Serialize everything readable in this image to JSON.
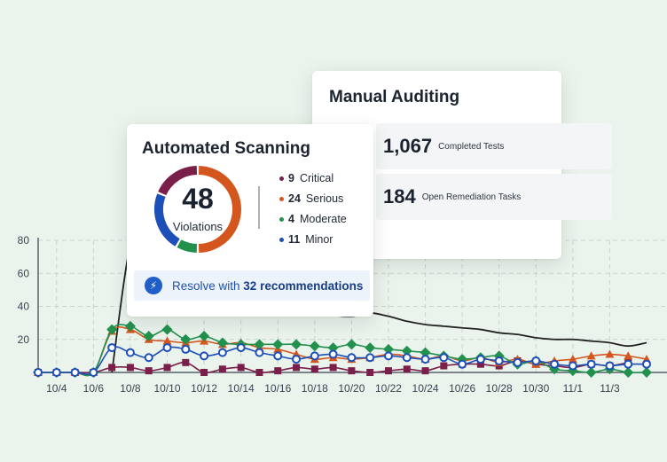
{
  "colors": {
    "critical": "#7a1e4a",
    "serious": "#d4561f",
    "moderate": "#23914e",
    "minor": "#1d4fb8",
    "black_line": "#222222",
    "brand_blue": "#1f5ec8"
  },
  "manual_auditing": {
    "title": "Manual Auditing",
    "stats": [
      {
        "value": "1,067",
        "label": "Completed Tests"
      },
      {
        "value": "184",
        "label": "Open Remediation Tasks"
      }
    ]
  },
  "automated_scanning": {
    "title": "Automated Scanning",
    "total": "48",
    "total_label": "Violations",
    "legend": [
      {
        "count": "9",
        "label": "Critical",
        "key": "critical"
      },
      {
        "count": "24",
        "label": "Serious",
        "key": "serious"
      },
      {
        "count": "4",
        "label": "Moderate",
        "key": "moderate"
      },
      {
        "count": "11",
        "label": "Minor",
        "key": "minor"
      }
    ],
    "resolve": {
      "prefix": "Resolve with",
      "count_text": "32 recommendations",
      "icon": "lightning-bolt-icon"
    }
  },
  "chart_data": {
    "type": "line",
    "ylim": [
      0,
      80
    ],
    "yticks": [
      20,
      40,
      60,
      80
    ],
    "xlim": [
      3,
      36
    ],
    "x_tick_labels": [
      "10/4",
      "10/6",
      "10/8",
      "10/10",
      "10/12",
      "10/14",
      "10/16",
      "10/18",
      "10/20",
      "10/22",
      "10/24",
      "10/26",
      "10/28",
      "10/30",
      "11/1",
      "11/3"
    ],
    "grid": true,
    "series": [
      {
        "key": "total",
        "color": "#222222",
        "marker": "none",
        "x": [
          7,
          7.9,
          8.5,
          9,
          10,
          11,
          12,
          13,
          14,
          15,
          16,
          17,
          18,
          19,
          20,
          21,
          22,
          23,
          24,
          25,
          26,
          27,
          28,
          29,
          30,
          31,
          32,
          33,
          34,
          35,
          36
        ],
        "y": [
          0,
          72,
          82,
          88,
          86,
          82,
          79,
          76,
          72,
          64,
          58,
          48,
          40,
          35,
          34,
          36,
          34,
          31,
          29,
          28,
          27,
          26,
          24,
          23,
          21,
          20,
          20,
          19,
          18,
          16,
          18
        ]
      },
      {
        "key": "critical",
        "color": "#7a1e4a",
        "marker": "square",
        "x": [
          3,
          4,
          5,
          6,
          7,
          8,
          9,
          10,
          11,
          12,
          13,
          14,
          15,
          16,
          17,
          18,
          19,
          20,
          21,
          22,
          23,
          24,
          25,
          26,
          27,
          28,
          29,
          30,
          31,
          32,
          33,
          34,
          35
        ],
        "y": [
          0,
          0,
          0,
          0,
          3,
          3,
          1,
          3,
          6,
          0,
          2,
          3,
          0,
          1,
          3,
          2,
          3,
          1,
          0,
          1,
          2,
          1,
          4,
          5,
          5,
          4,
          7,
          5,
          4,
          3,
          5,
          4,
          6
        ]
      },
      {
        "key": "serious",
        "color": "#d4561f",
        "marker": "triangle",
        "x": [
          3,
          4,
          5,
          6,
          7,
          8,
          9,
          10,
          11,
          12,
          13,
          14,
          15,
          16,
          17,
          18,
          19,
          20,
          21,
          22,
          23,
          24,
          25,
          26,
          27,
          28,
          29,
          30,
          31,
          32,
          33,
          34,
          35,
          36
        ],
        "y": [
          0,
          0,
          0,
          0,
          25,
          26,
          20,
          19,
          18,
          19,
          17,
          18,
          15,
          14,
          11,
          8,
          9,
          8,
          9,
          11,
          10,
          8,
          10,
          7,
          9,
          6,
          8,
          5,
          7,
          8,
          10,
          11,
          10,
          8
        ]
      },
      {
        "key": "moderate",
        "color": "#23914e",
        "marker": "diamond",
        "x": [
          3,
          4,
          5,
          6,
          7,
          8,
          9,
          10,
          11,
          12,
          13,
          14,
          15,
          16,
          17,
          18,
          19,
          20,
          21,
          22,
          23,
          24,
          25,
          26,
          27,
          28,
          29,
          30,
          31,
          32,
          33,
          34,
          35,
          36
        ],
        "y": [
          0,
          0,
          0,
          0,
          26,
          28,
          22,
          26,
          20,
          22,
          18,
          17,
          17,
          17,
          17,
          16,
          15,
          17,
          15,
          14,
          13,
          12,
          10,
          8,
          9,
          10,
          5,
          7,
          2,
          1,
          0,
          2,
          0,
          0
        ]
      },
      {
        "key": "minor",
        "color": "#1d4fb8",
        "marker": "circle",
        "x": [
          3,
          4,
          5,
          6,
          7,
          8,
          9,
          10,
          11,
          12,
          13,
          14,
          15,
          16,
          17,
          18,
          19,
          20,
          21,
          22,
          23,
          24,
          25,
          26,
          27,
          28,
          29,
          30,
          31,
          32,
          33,
          34,
          35,
          36
        ],
        "y": [
          0,
          0,
          0,
          0,
          15,
          12,
          9,
          15,
          14,
          10,
          12,
          15,
          12,
          10,
          8,
          10,
          11,
          9,
          9,
          10,
          9,
          8,
          9,
          5,
          8,
          7,
          6,
          7,
          5,
          4,
          5,
          4,
          5,
          5
        ]
      }
    ]
  }
}
